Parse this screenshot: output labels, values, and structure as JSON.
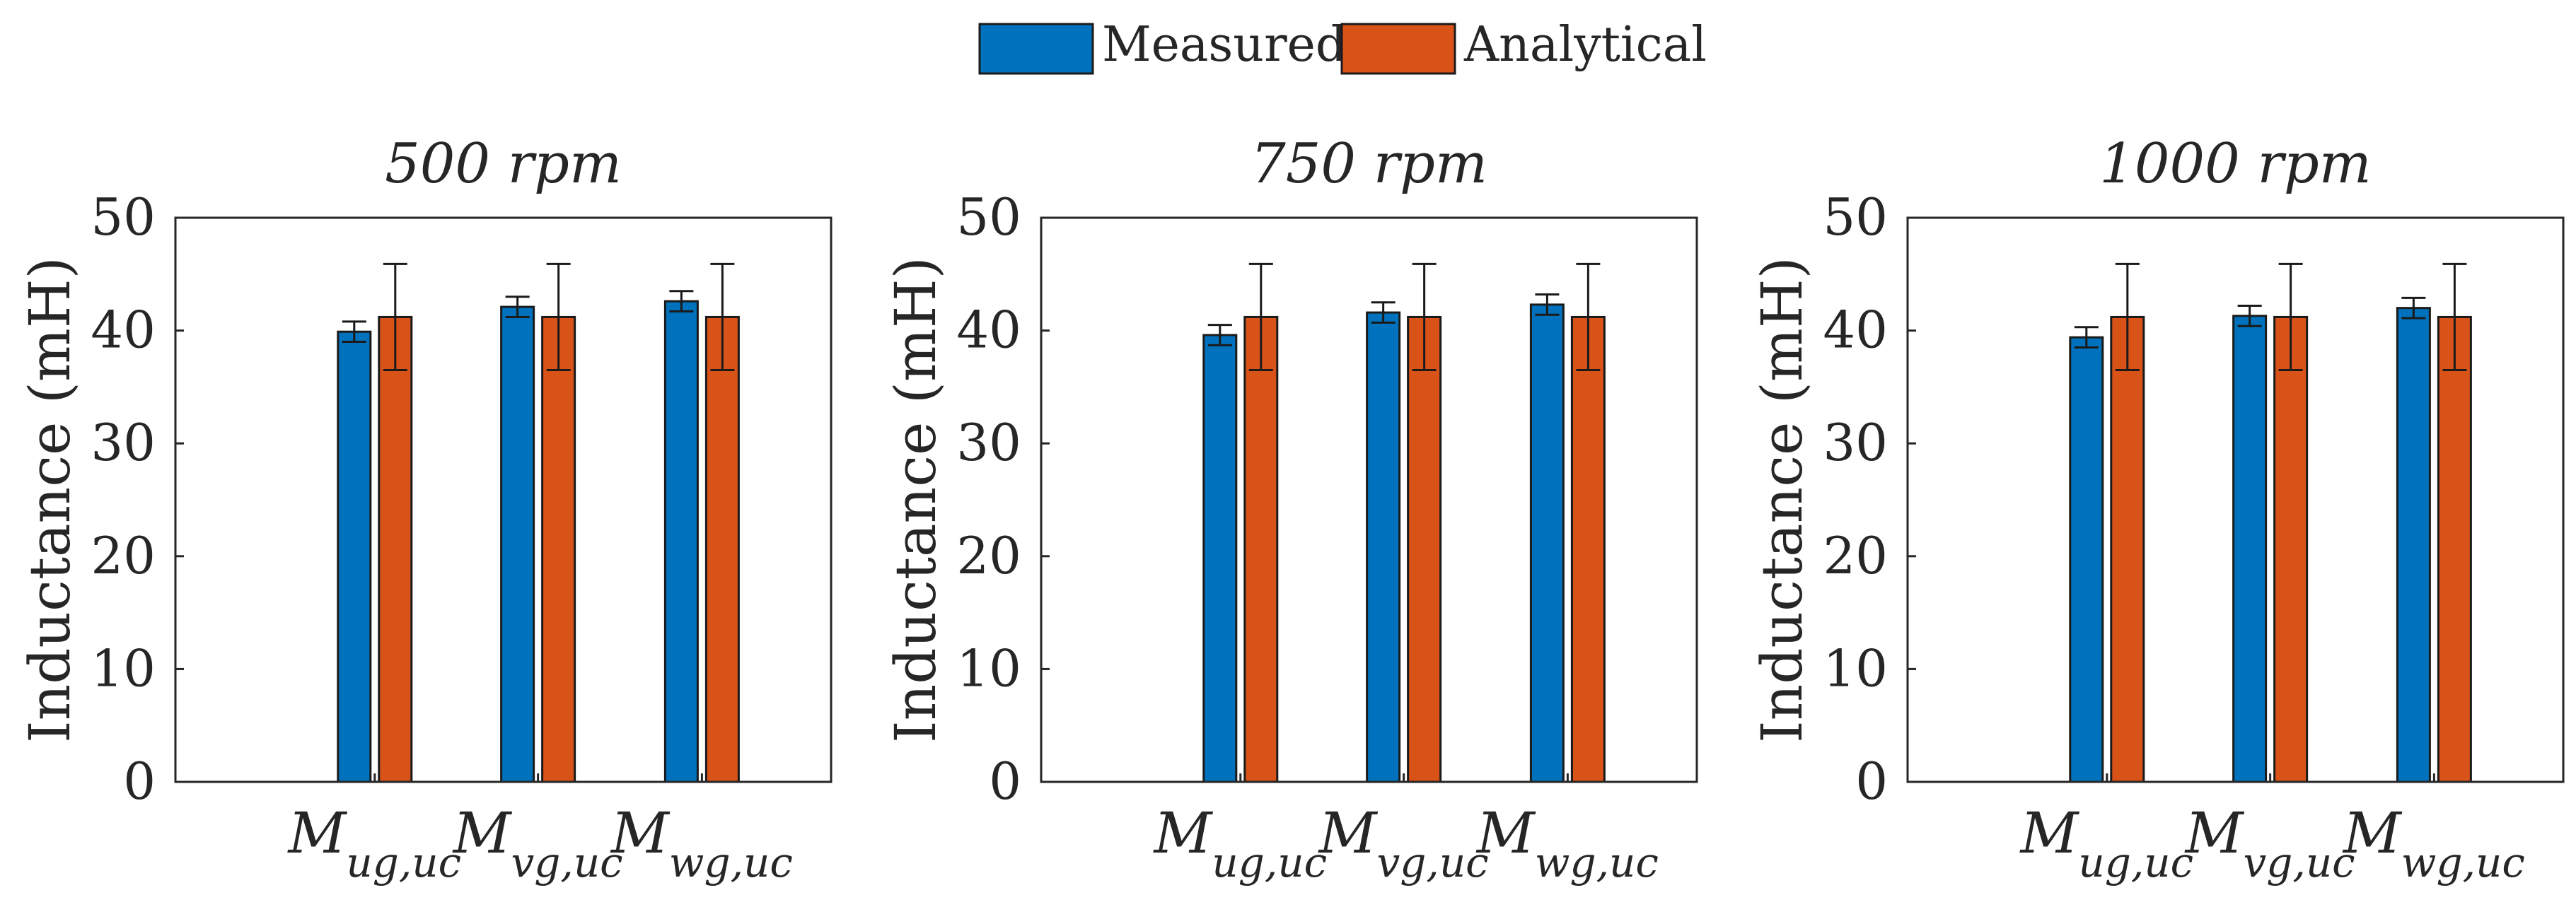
{
  "chart_data": {
    "type": "bar",
    "legend": {
      "position": "top-center",
      "entries": [
        {
          "label": "Measured",
          "color": "#0072BD"
        },
        {
          "label": "Analytical",
          "color": "#D95319"
        }
      ]
    },
    "subplots": [
      {
        "title": "500 rpm",
        "ylabel": "Inductance (mH)",
        "ylim": [
          0,
          50
        ],
        "yticks": [
          "0",
          "10",
          "20",
          "30",
          "40",
          "50"
        ],
        "categories": [
          {
            "main": "M",
            "sub": "ug,uc"
          },
          {
            "main": "M",
            "sub": "vg,uc"
          },
          {
            "main": "M",
            "sub": "wg,uc"
          }
        ],
        "series": [
          {
            "name": "Measured",
            "values": [
              39.9,
              42.1,
              42.6
            ],
            "err": [
              0.9,
              0.9,
              0.9
            ]
          },
          {
            "name": "Analytical",
            "values": [
              41.2,
              41.2,
              41.2
            ],
            "err": [
              4.7,
              4.7,
              4.7
            ]
          }
        ]
      },
      {
        "title": "750 rpm",
        "ylabel": "Inductance (mH)",
        "ylim": [
          0,
          50
        ],
        "yticks": [
          "0",
          "10",
          "20",
          "30",
          "40",
          "50"
        ],
        "categories": [
          {
            "main": "M",
            "sub": "ug,uc"
          },
          {
            "main": "M",
            "sub": "vg,uc"
          },
          {
            "main": "M",
            "sub": "wg,uc"
          }
        ],
        "series": [
          {
            "name": "Measured",
            "values": [
              39.6,
              41.6,
              42.3
            ],
            "err": [
              0.9,
              0.9,
              0.9
            ]
          },
          {
            "name": "Analytical",
            "values": [
              41.2,
              41.2,
              41.2
            ],
            "err": [
              4.7,
              4.7,
              4.7
            ]
          }
        ]
      },
      {
        "title": "1000 rpm",
        "ylabel": "Inductance (mH)",
        "ylim": [
          0,
          50
        ],
        "yticks": [
          "0",
          "10",
          "20",
          "30",
          "40",
          "50"
        ],
        "categories": [
          {
            "main": "M",
            "sub": "ug,uc"
          },
          {
            "main": "M",
            "sub": "vg,uc"
          },
          {
            "main": "M",
            "sub": "wg,uc"
          }
        ],
        "series": [
          {
            "name": "Measured",
            "values": [
              39.4,
              41.3,
              42.0
            ],
            "err": [
              0.9,
              0.9,
              0.9
            ]
          },
          {
            "name": "Analytical",
            "values": [
              41.2,
              41.2,
              41.2
            ],
            "err": [
              4.7,
              4.7,
              4.7
            ]
          }
        ]
      }
    ]
  }
}
